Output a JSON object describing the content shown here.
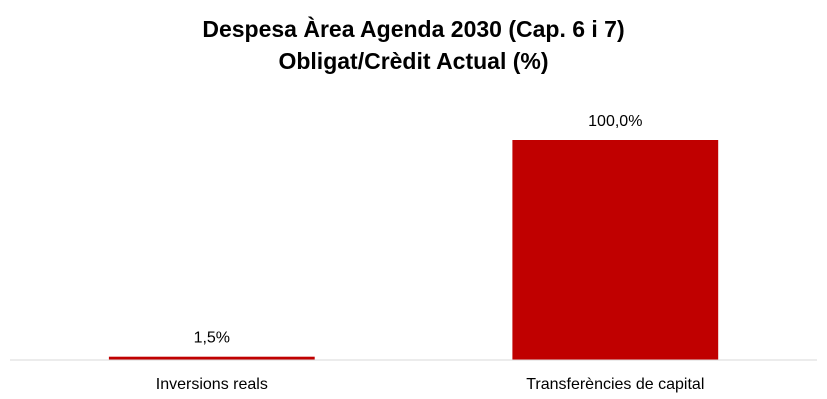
{
  "chart_data": {
    "type": "bar",
    "title": "Despesa Àrea Agenda 2030 (Cap. 6 i 7)",
    "subtitle": "Obligat/Crèdit Actual (%)",
    "categories": [
      "Inversions reals",
      "Transferències de capital"
    ],
    "values": [
      1.5,
      100.0
    ],
    "data_labels": [
      "1,5%",
      "100,0%"
    ],
    "ylim": [
      0,
      100
    ],
    "grid": false,
    "legend": "none",
    "bar_color": "#c00000",
    "axis_color": "#d9d9d9"
  }
}
